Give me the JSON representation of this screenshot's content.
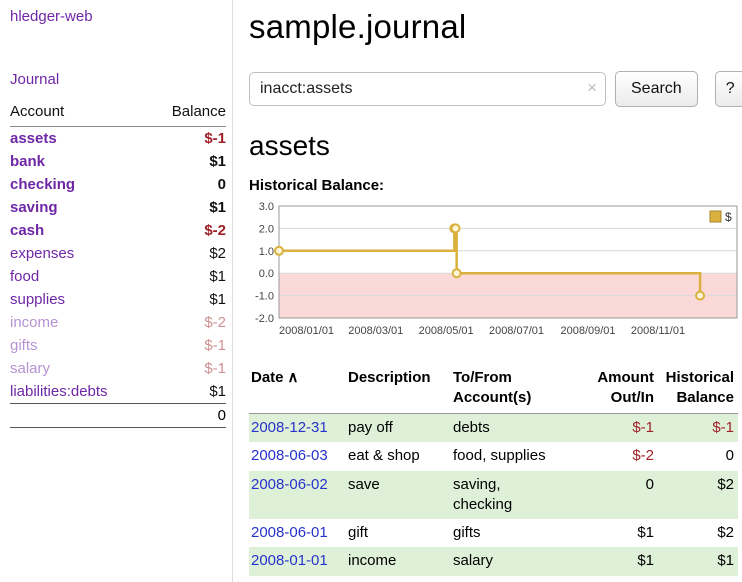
{
  "sidebar": {
    "app_title": "hledger-web",
    "journal_label": "Journal",
    "accounts_header": {
      "account": "Account",
      "balance": "Balance"
    },
    "accounts": [
      {
        "name": "assets",
        "balance": "$-1",
        "depth": 1,
        "bold": true,
        "faded": false,
        "name_color": "maroon",
        "balance_color": "maroon"
      },
      {
        "name": "bank",
        "balance": "$1",
        "depth": 2,
        "bold": true,
        "faded": false,
        "name_color": "purple",
        "balance_color": "black"
      },
      {
        "name": "checking",
        "balance": "0",
        "depth": 3,
        "bold": true,
        "faded": false,
        "name_color": "purple",
        "balance_color": "black"
      },
      {
        "name": "saving",
        "balance": "$1",
        "depth": 3,
        "bold": true,
        "faded": false,
        "name_color": "purple",
        "balance_color": "black"
      },
      {
        "name": "cash",
        "balance": "$-2",
        "depth": 2,
        "bold": true,
        "faded": false,
        "name_color": "maroon",
        "balance_color": "maroon"
      },
      {
        "name": "expenses",
        "balance": "$2",
        "depth": 1,
        "bold": false,
        "faded": false,
        "name_color": "purple",
        "balance_color": "black"
      },
      {
        "name": "food",
        "balance": "$1",
        "depth": 2,
        "bold": false,
        "faded": false,
        "name_color": "purple",
        "balance_color": "black"
      },
      {
        "name": "supplies",
        "balance": "$1",
        "depth": 2,
        "bold": false,
        "faded": false,
        "name_color": "purple",
        "balance_color": "black"
      },
      {
        "name": "income",
        "balance": "$-2",
        "depth": 1,
        "bold": false,
        "faded": true,
        "name_color": "purple",
        "balance_color": "maroon"
      },
      {
        "name": "gifts",
        "balance": "$-1",
        "depth": 2,
        "bold": false,
        "faded": true,
        "name_color": "purple",
        "balance_color": "maroon"
      },
      {
        "name": "salary",
        "balance": "$-1",
        "depth": 2,
        "bold": false,
        "faded": true,
        "name_color": "purple",
        "balance_color": "maroon"
      },
      {
        "name": "liabilities:debts",
        "balance": "$1",
        "depth": 0,
        "bold": false,
        "faded": false,
        "name_color": "purple",
        "balance_color": "black"
      }
    ],
    "total": "0"
  },
  "main": {
    "title": "sample.journal",
    "search": {
      "value": "inacct:assets",
      "clear_icon": "×",
      "button_label": "Search",
      "help_label": "?"
    },
    "account_heading": "assets",
    "chart_label": "Historical Balance:"
  },
  "chart_data": {
    "type": "line",
    "title": "Historical Balance",
    "xlabel": "",
    "ylabel": "",
    "grid": true,
    "legend_position": "top-right",
    "legend": [
      {
        "label": "$",
        "color": "#d9b13c"
      }
    ],
    "ylim": [
      -2.0,
      3.0
    ],
    "y_ticks": [
      3.0,
      2.0,
      1.0,
      0.0,
      -1.0,
      -2.0
    ],
    "x_range": [
      "2008-01-01",
      "2009-02-01"
    ],
    "x_ticks": [
      "2008-01-01",
      "2008-03-01",
      "2008-05-01",
      "2008-07-01",
      "2008-09-01",
      "2008-11-01"
    ],
    "x_tick_labels": [
      "2008/01/01",
      "2008/03/01",
      "2008/05/01",
      "2008/07/01",
      "2008/09/01",
      "2008/11/01"
    ],
    "series": [
      {
        "name": "$",
        "step": true,
        "points": [
          [
            "2008-01-01",
            1
          ],
          [
            "2008-06-01",
            2
          ],
          [
            "2008-06-02",
            2
          ],
          [
            "2008-06-03",
            0
          ],
          [
            "2008-12-31",
            -1
          ]
        ]
      }
    ],
    "line_color": "#d9b13c",
    "marker_fill": "#fdf4d7",
    "negative_region_fill": "#fbd9d9"
  },
  "register": {
    "sort_indicator": "∧",
    "headers": [
      {
        "lines": [
          "Date"
        ],
        "align": "left",
        "sort": true
      },
      {
        "lines": [
          "Description"
        ],
        "align": "left"
      },
      {
        "lines": [
          "To/From",
          "Account(s)"
        ],
        "align": "left"
      },
      {
        "lines": [
          "Amount",
          "Out/In"
        ],
        "align": "right"
      },
      {
        "lines": [
          "Historical",
          "Balance"
        ],
        "align": "right"
      }
    ],
    "rows": [
      {
        "date": "2008-12-31",
        "description": "pay off",
        "accounts": [
          "debts"
        ],
        "amount": "$-1",
        "amount_negative": true,
        "balance": "$-1",
        "balance_negative": true
      },
      {
        "date": "2008-06-03",
        "description": "eat & shop",
        "accounts": [
          "food, supplies"
        ],
        "amount": "$-2",
        "amount_negative": true,
        "balance": "0",
        "balance_negative": false
      },
      {
        "date": "2008-06-02",
        "description": "save",
        "accounts": [
          "saving,",
          "checking"
        ],
        "amount": "0",
        "amount_negative": false,
        "balance": "$2",
        "balance_negative": false
      },
      {
        "date": "2008-06-01",
        "description": "gift",
        "accounts": [
          "gifts"
        ],
        "amount": "$1",
        "amount_negative": false,
        "balance": "$2",
        "balance_negative": false
      },
      {
        "date": "2008-01-01",
        "description": "income",
        "accounts": [
          "salary"
        ],
        "amount": "$1",
        "amount_negative": false,
        "balance": "$1",
        "balance_negative": false
      }
    ]
  },
  "colors": {
    "accent_purple": "#6f27a6",
    "negative_red": "#a02128",
    "date_blue": "#2633cc",
    "row_green": "#dff0d8",
    "chart_line_gold": "#d9b13c",
    "chart_negative_region": "#fbd9d9"
  }
}
